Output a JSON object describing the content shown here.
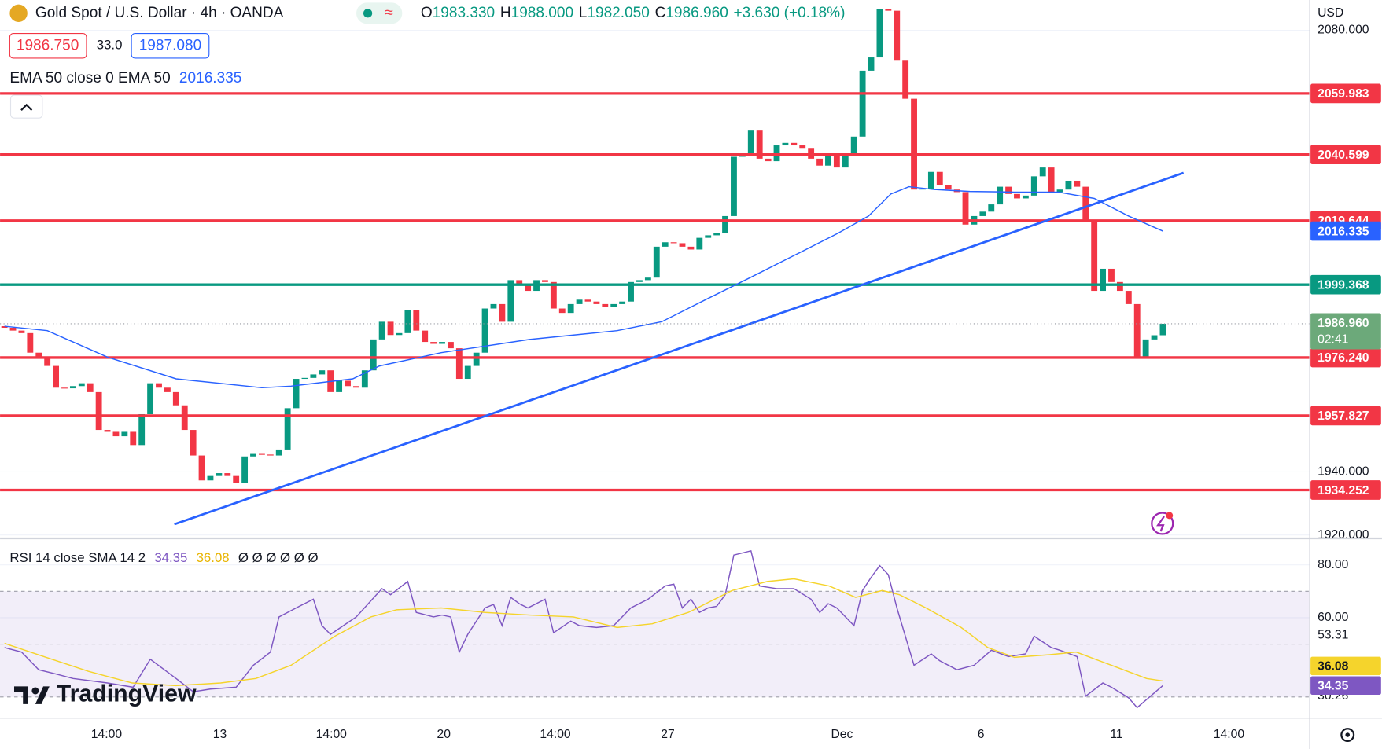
{
  "header": {
    "symbol": "Gold Spot / U.S. Dollar · 4h · OANDA",
    "ohlc": [
      [
        "O",
        "1983.330"
      ],
      [
        "H",
        "1988.000"
      ],
      [
        "L",
        "1982.050"
      ],
      [
        "C",
        "1986.960"
      ]
    ],
    "change": "+3.630 (+0.18%)",
    "bid": "1986.750",
    "spread": "33.0",
    "ask": "1987.080",
    "currency": "USD",
    "brand": "TradingView"
  },
  "chart_data": [
    {
      "type": "candlestick",
      "xlim": [
        -0.51,
        152.1
      ],
      "ylim": [
        1919.2,
        2089.6
      ],
      "xticks": [
        {
          "value": 11.9,
          "label": "14:00"
        },
        {
          "value": 25.1,
          "label": "13"
        },
        {
          "value": 38.1,
          "label": "14:00"
        },
        {
          "value": 51.2,
          "label": "20"
        },
        {
          "value": 64.2,
          "label": "14:00"
        },
        {
          "value": 77.3,
          "label": "27"
        },
        {
          "value": 97.6,
          "label": "Dec"
        },
        {
          "value": 113.8,
          "label": "6"
        },
        {
          "value": 129.6,
          "label": "11"
        },
        {
          "value": 142.7,
          "label": "14:00"
        }
      ],
      "yticks": [
        {
          "value": 1920,
          "label": "1920.000"
        },
        {
          "value": 1940,
          "label": "1940.000"
        },
        {
          "value": 2080,
          "label": "2080.000"
        }
      ],
      "candles": {
        "up_color": "#089981",
        "down_color": "#f23645",
        "last_label": "1986.960",
        "countdown": "02:41",
        "open": [
          1986.2,
          1985.7,
          1984.8,
          1984.0,
          1977.8,
          1976.4,
          1973.6,
          1966.7,
          1966.5,
          1967.2,
          1968.1,
          1965.3,
          1953.3,
          1952.7,
          1951.3,
          1952.7,
          1948.5,
          1958.3,
          1968.1,
          1966.7,
          1965.3,
          1961.1,
          1953.3,
          1945.2,
          1937.3,
          1938.7,
          1939.6,
          1938.7,
          1936.5,
          1944.9,
          1945.7,
          1945.5,
          1945.2,
          1947.1,
          1960.2,
          1969.5,
          1969.8,
          1970.9,
          1972.2,
          1965.3,
          1968.9,
          1967.2,
          1966.7,
          1972.2,
          1982.0,
          1987.6,
          1983.4,
          1984.0,
          1991.3,
          1984.8,
          1981.2,
          1980.6,
          1981.2,
          1979.2,
          1969.5,
          1973.6,
          1977.8,
          1991.8,
          1993.2,
          1987.6,
          2000.8,
          1999.6,
          1997.4,
          2000.8,
          2000.2,
          1991.8,
          1990.4,
          1993.2,
          1994.6,
          1994.0,
          1993.2,
          1992.4,
          1993.2,
          1994.0,
          2000.2,
          2000.8,
          2001.6,
          2011.4,
          2012.8,
          2012.5,
          2011.4,
          2010.5,
          2014.2,
          2015.0,
          2015.6,
          2021.1,
          2039.9,
          2040.7,
          2048.2,
          2039.3,
          2038.5,
          2043.5,
          2044.3,
          2043.5,
          2042.7,
          2039.3,
          2037.1,
          2040.7,
          2036.5,
          2040.7,
          2046.3,
          2067.2,
          2071.4,
          2086.8,
          2086.2,
          2070.6,
          2058.3,
          2029.5,
          2029.8,
          2035.1,
          2030.9,
          2029.5,
          2028.7,
          2018.4,
          2021.1,
          2022.5,
          2024.8,
          2030.4,
          2028.1,
          2026.7,
          2027.6,
          2033.7,
          2036.5,
          2028.7,
          2029.5,
          2032.3,
          2030.4,
          2019.8,
          1997.4,
          2004.4,
          2000.2,
          1997.4,
          1993.2,
          1976.4,
          1982.0,
          1983.33
        ],
        "close": [
          1985.7,
          1984.8,
          1984.0,
          1977.8,
          1976.4,
          1973.6,
          1966.7,
          1966.5,
          1967.2,
          1968.1,
          1965.3,
          1953.3,
          1952.7,
          1951.3,
          1952.7,
          1948.5,
          1958.3,
          1968.1,
          1966.7,
          1965.3,
          1961.1,
          1953.3,
          1945.2,
          1937.3,
          1938.7,
          1939.6,
          1938.7,
          1936.5,
          1944.9,
          1945.7,
          1945.5,
          1945.2,
          1947.1,
          1960.2,
          1969.5,
          1969.8,
          1970.9,
          1972.2,
          1965.3,
          1968.9,
          1967.2,
          1966.7,
          1972.2,
          1982.0,
          1987.6,
          1983.4,
          1984.0,
          1991.3,
          1984.8,
          1981.2,
          1980.6,
          1981.2,
          1979.2,
          1969.5,
          1973.6,
          1977.8,
          1991.8,
          1993.2,
          1987.6,
          2000.8,
          1999.6,
          1997.4,
          2000.8,
          2000.2,
          1991.8,
          1990.4,
          1993.2,
          1994.6,
          1994.0,
          1993.2,
          1992.4,
          1993.2,
          1994.0,
          2000.2,
          2000.8,
          2001.6,
          2011.4,
          2012.8,
          2012.5,
          2011.4,
          2010.5,
          2014.2,
          2015.0,
          2015.6,
          2021.1,
          2039.9,
          2040.7,
          2048.2,
          2039.3,
          2038.5,
          2043.5,
          2044.3,
          2043.5,
          2042.7,
          2039.3,
          2037.1,
          2040.7,
          2036.5,
          2040.7,
          2046.3,
          2067.2,
          2071.4,
          2086.8,
          2086.2,
          2070.6,
          2058.3,
          2029.5,
          2029.8,
          2035.1,
          2030.9,
          2029.5,
          2028.7,
          2018.4,
          2021.1,
          2022.5,
          2024.8,
          2030.4,
          2028.1,
          2026.7,
          2027.6,
          2033.7,
          2036.5,
          2028.7,
          2029.5,
          2032.3,
          2030.4,
          2019.8,
          1997.4,
          2004.4,
          2000.2,
          1997.4,
          1993.2,
          1976.4,
          1982.0,
          1983.33,
          1986.96
        ]
      },
      "ema": {
        "name": "EMA 50 close 0 EMA 50",
        "color": "#2962ff",
        "x": [
          0,
          5,
          12,
          20,
          30,
          33.4,
          40.6,
          43.7,
          50.9,
          61.2,
          71.4,
          76.6,
          81.7,
          86.9,
          92,
          97.1,
          100.7,
          103.3,
          105.4,
          108.4,
          112.5,
          117.7,
          122.8,
          127,
          131,
          135
        ],
        "values": [
          1986.2,
          1984.8,
          1976.4,
          1969.5,
          1966.7,
          1967.2,
          1969.5,
          1973.6,
          1977.8,
          1982.0,
          1984.8,
          1987.6,
          1994.6,
          2001.6,
          2008.6,
          2015.6,
          2021.1,
          2028.1,
          2030.4,
          2029.5,
          2028.9,
          2028.7,
          2028.7,
          2026.7,
          2021.1,
          2016.335
        ]
      },
      "trendline": {
        "color": "#2962ff",
        "x": [
          19.8,
          137.4
        ],
        "values": [
          1923.4,
          2034.8
        ]
      },
      "levels": [
        {
          "value": 2059.983,
          "color": "#f23645"
        },
        {
          "value": 2040.599,
          "color": "#f23645"
        },
        {
          "value": 2019.644,
          "color": "#f23645"
        },
        {
          "value": 1999.368,
          "color": "#089981"
        },
        {
          "value": 1976.24,
          "label": "1976.240",
          "color": "#f23645"
        },
        {
          "value": 1957.827,
          "color": "#f23645"
        },
        {
          "value": 1934.252,
          "color": "#f23645"
        }
      ]
    },
    {
      "type": "line",
      "title": "RSI 14 close SMA 14 2",
      "na": "Ø Ø Ø Ø Ø Ø",
      "xlim": [
        -0.51,
        152.1
      ],
      "ylim": [
        22,
        89.67
      ],
      "yticks": [
        {
          "value": 80,
          "label": "80.00"
        },
        {
          "value": 60,
          "label": "60.00"
        }
      ],
      "bands": [
        70,
        50,
        30
      ],
      "band_color": "#7e57c2",
      "scale_labels": [
        53.31,
        30.26
      ],
      "series": [
        {
          "color": "#7e57c2",
          "x": [
            0,
            2,
            4,
            6,
            8,
            12,
            15,
            17,
            20,
            22,
            24,
            27,
            29,
            31,
            32,
            34,
            36,
            37,
            38,
            41,
            44,
            45,
            47,
            48,
            50,
            51,
            52,
            53,
            54,
            56,
            57,
            58,
            59,
            60,
            61,
            63,
            64,
            66,
            67,
            69,
            71,
            73,
            75,
            77,
            78,
            79,
            80,
            81,
            82,
            83,
            84,
            85,
            87,
            88,
            90,
            92,
            94,
            95,
            96,
            97,
            99,
            100,
            101,
            102,
            103,
            104,
            106,
            108,
            109,
            111,
            113,
            115,
            117,
            119,
            120,
            122,
            123,
            125,
            126,
            128,
            129,
            131,
            132,
            135
          ],
          "values": [
            48.7,
            47.0,
            40.3,
            38.7,
            37.0,
            35.3,
            33.7,
            44.3,
            37.0,
            32.0,
            33.0,
            33.7,
            42.0,
            47.0,
            60.3,
            63.7,
            67.0,
            57.0,
            53.7,
            60.3,
            71.0,
            68.7,
            73.7,
            62.0,
            60.3,
            61.0,
            60.3,
            47.0,
            53.7,
            63.7,
            65.0,
            57.0,
            67.7,
            65.3,
            63.7,
            67.0,
            54.3,
            58.7,
            57.0,
            56.3,
            57.0,
            63.7,
            67.0,
            72.0,
            72.7,
            63.7,
            67.0,
            62.0,
            63.7,
            64.3,
            68.7,
            83.7,
            85.3,
            72.0,
            71.0,
            71.0,
            67.0,
            62.0,
            65.3,
            63.7,
            57.0,
            70.3,
            75.3,
            79.7,
            76.3,
            63.7,
            42.0,
            46.3,
            43.7,
            40.3,
            42.0,
            47.7,
            45.3,
            46.3,
            53.0,
            48.7,
            47.7,
            45.3,
            30.3,
            35.3,
            33.7,
            29.7,
            26.0,
            34.35
          ]
        },
        {
          "color": "#f5d42c",
          "x": [
            0,
            4.6,
            9.8,
            14.9,
            20,
            25.2,
            29.3,
            33.4,
            36.5,
            38.5,
            42.7,
            45.7,
            50.9,
            56,
            61.2,
            66.3,
            71.4,
            75.5,
            79.7,
            84.8,
            88.9,
            92,
            96.1,
            99.2,
            102.3,
            104.3,
            107.4,
            111.5,
            114.6,
            117.7,
            121.8,
            124.9,
            129,
            133.1,
            135
          ],
          "values": [
            50.3,
            45.3,
            39.7,
            35.3,
            34.3,
            35.3,
            37.0,
            42.0,
            48.7,
            53.0,
            60.3,
            63.0,
            63.7,
            62.0,
            61.0,
            60.3,
            56.3,
            57.7,
            62.0,
            70.3,
            73.7,
            74.7,
            72.0,
            67.7,
            70.3,
            68.7,
            63.7,
            56.3,
            48.7,
            45.0,
            46.0,
            47.0,
            42.0,
            37.0,
            36.08
          ]
        }
      ]
    }
  ]
}
